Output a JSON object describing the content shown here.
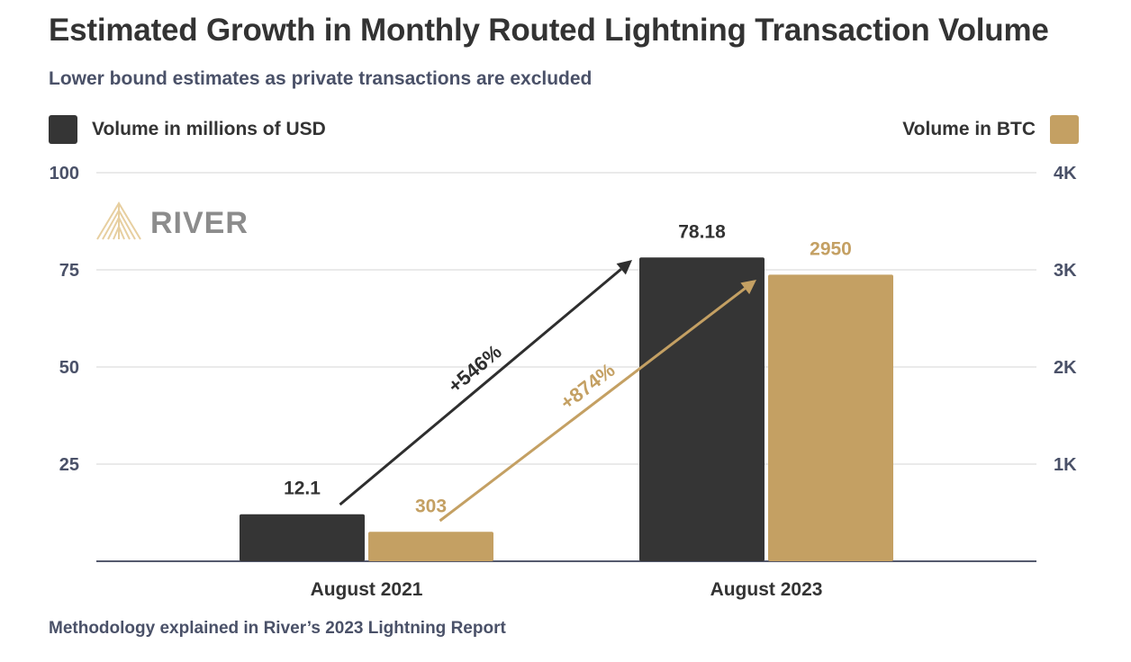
{
  "title": "Estimated Growth in Monthly Routed Lightning Transaction Volume",
  "subtitle": "Lower bound estimates as private transactions are excluded",
  "footer": "Methodology explained in River’s 2023 Lightning Report",
  "logo": {
    "text": "RIVER",
    "icon": "river-chevron-logo-icon"
  },
  "colors": {
    "usd": "#353535",
    "btc": "#c4a063",
    "grid": "#e4e4e4",
    "axis_text": "#4a5168"
  },
  "chart_data": {
    "type": "bar",
    "categories": [
      "August 2021",
      "August 2023"
    ],
    "series": [
      {
        "name": "Volume in millions of USD",
        "axis": "left",
        "values": [
          12.1,
          78.18
        ],
        "labels": [
          "12.1",
          "78.18"
        ]
      },
      {
        "name": "Volume in BTC",
        "axis": "right",
        "values": [
          303,
          2950
        ],
        "labels": [
          "303",
          "2950"
        ]
      }
    ],
    "y_left": {
      "ylim": [
        0,
        100
      ],
      "ticks": [
        25,
        50,
        75,
        100
      ],
      "tick_labels": [
        "25",
        "50",
        "75",
        "100"
      ]
    },
    "y_right": {
      "ylim": [
        0,
        4000
      ],
      "ticks": [
        1000,
        2000,
        3000,
        4000
      ],
      "tick_labels": [
        "1K",
        "2K",
        "3K",
        "4K"
      ]
    },
    "grid": true,
    "legend": [
      {
        "label": "Volume in millions of USD",
        "position": "top-left"
      },
      {
        "label": "Volume in BTC",
        "position": "top-right"
      }
    ],
    "annotations": [
      {
        "text": "+546%",
        "series": "Volume in millions of USD"
      },
      {
        "text": "+874%",
        "series": "Volume in BTC"
      }
    ]
  }
}
